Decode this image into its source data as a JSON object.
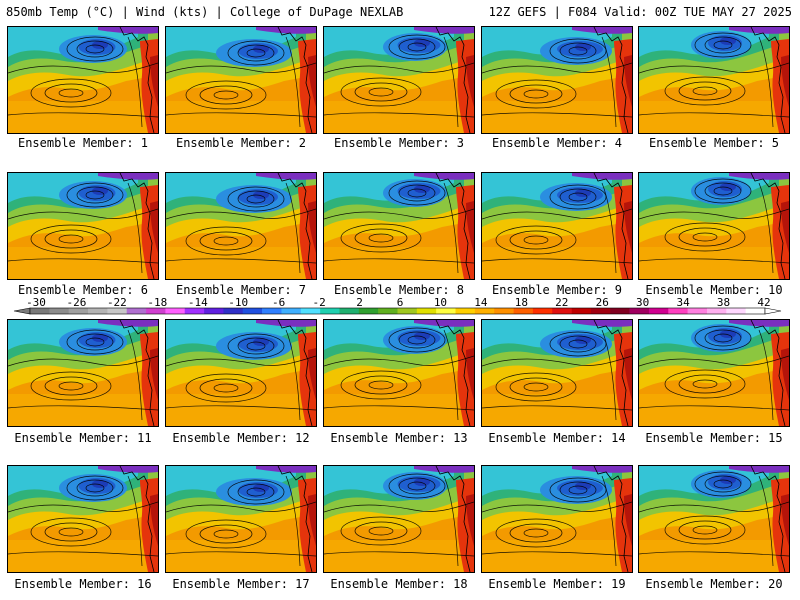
{
  "header": {
    "left": "850mb Temp (°C) | Wind (kts) | College of DuPage NEXLAB",
    "right": "12Z GEFS | F084 Valid: 00Z TUE MAY 27 2025"
  },
  "panels": [
    {
      "label": "Ensemble Member: 1"
    },
    {
      "label": "Ensemble Member: 2"
    },
    {
      "label": "Ensemble Member: 3"
    },
    {
      "label": "Ensemble Member: 4"
    },
    {
      "label": "Ensemble Member: 5"
    },
    {
      "label": "Ensemble Member: 6"
    },
    {
      "label": "Ensemble Member: 7"
    },
    {
      "label": "Ensemble Member: 8"
    },
    {
      "label": "Ensemble Member: 9"
    },
    {
      "label": "Ensemble Member: 10"
    },
    {
      "label": "Ensemble Member: 11"
    },
    {
      "label": "Ensemble Member: 12"
    },
    {
      "label": "Ensemble Member: 13"
    },
    {
      "label": "Ensemble Member: 14"
    },
    {
      "label": "Ensemble Member: 15"
    },
    {
      "label": "Ensemble Member: 16"
    },
    {
      "label": "Ensemble Member: 17"
    },
    {
      "label": "Ensemble Member: 18"
    },
    {
      "label": "Ensemble Member: 19"
    },
    {
      "label": "Ensemble Member: 20"
    }
  ],
  "colorbar": {
    "ticks": [
      "-30",
      "-26",
      "-22",
      "-18",
      "-14",
      "-10",
      "-6",
      "-2",
      "2",
      "6",
      "10",
      "14",
      "18",
      "22",
      "26",
      "30",
      "34",
      "38",
      "42"
    ],
    "colors": [
      "#7a7a7a",
      "#8c8c8c",
      "#a0a0a0",
      "#b4b4b4",
      "#c8c8c8",
      "#b070d0",
      "#d040d0",
      "#ff60ff",
      "#a030ff",
      "#6020e0",
      "#3030c8",
      "#2050e0",
      "#3080ff",
      "#40b0ff",
      "#50e0ff",
      "#20d0b0",
      "#20b070",
      "#30a030",
      "#60b020",
      "#a0c820",
      "#e0e000",
      "#ffff40",
      "#ffd000",
      "#ffb000",
      "#ff9000",
      "#ff6000",
      "#ff3000",
      "#e01010",
      "#c00000",
      "#a00010",
      "#800020",
      "#a00060",
      "#d00090",
      "#ff40c0",
      "#ff80e0",
      "#ffb0f0",
      "#ffd8ff",
      "#ffffff"
    ]
  }
}
